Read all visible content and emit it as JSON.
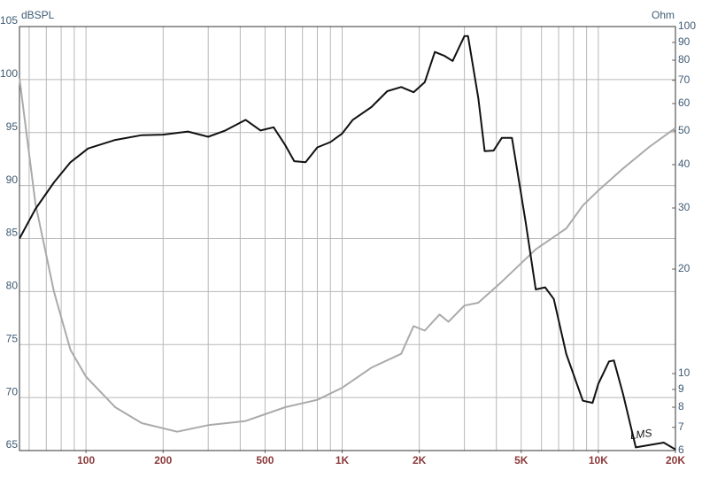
{
  "chart_data": {
    "type": "line",
    "y_label": "dBSPL",
    "y2_label": "Ohm",
    "annotation": "LMS",
    "xscale": "log",
    "y2scale": "log",
    "grid": true,
    "xlim": [
      55,
      20000
    ],
    "ylim": [
      65,
      105
    ],
    "y2lim": [
      6,
      100
    ],
    "xticks": [
      {
        "value": 100,
        "label": "100"
      },
      {
        "value": 200,
        "label": "200"
      },
      {
        "value": 500,
        "label": "500"
      },
      {
        "value": 1000,
        "label": "1K"
      },
      {
        "value": 2000,
        "label": "2K"
      },
      {
        "value": 5000,
        "label": "5K"
      },
      {
        "value": 10000,
        "label": "10K"
      },
      {
        "value": 20000,
        "label": "20K"
      }
    ],
    "xgrid": [
      60,
      70,
      80,
      90,
      100,
      200,
      300,
      400,
      500,
      600,
      700,
      800,
      900,
      1000,
      2000,
      3000,
      4000,
      5000,
      6000,
      7000,
      8000,
      9000,
      10000,
      20000
    ],
    "yticks": [
      65,
      70,
      75,
      80,
      85,
      90,
      95,
      100,
      105
    ],
    "y2ticks": [
      6,
      7,
      8,
      9,
      10,
      20,
      30,
      40,
      50,
      60,
      70,
      80,
      90,
      100
    ],
    "series": [
      {
        "color": "#111111",
        "axis": "y",
        "x": [
          55,
          63.5,
          75,
          87,
          102,
          130,
          165,
          200,
          250,
          300,
          350,
          420,
          480,
          540,
          600,
          650,
          720,
          800,
          900,
          1000,
          1100,
          1300,
          1500,
          1700,
          1900,
          2100,
          2300,
          2500,
          2700,
          3000,
          3100,
          3400,
          3600,
          3900,
          4200,
          4600,
          5200,
          5700,
          6200,
          6700,
          7500,
          8700,
          9500,
          10000,
          11000,
          11500,
          12500,
          14000,
          18000,
          20000
        ],
        "values": [
          85.0,
          87.8,
          90.3,
          92.2,
          93.5,
          94.3,
          94.75,
          94.8,
          95.1,
          94.6,
          95.2,
          96.2,
          95.2,
          95.5,
          93.8,
          92.3,
          92.2,
          93.6,
          94.1,
          94.9,
          96.2,
          97.4,
          98.9,
          99.3,
          98.8,
          99.75,
          102.6,
          102.25,
          101.75,
          104.1,
          104.1,
          98.25,
          93.25,
          93.3,
          94.5,
          94.5,
          86.6,
          80.2,
          80.4,
          79.3,
          74.1,
          69.7,
          69.5,
          71.3,
          73.4,
          73.5,
          70.3,
          65.3,
          65.75,
          65.1
        ]
      },
      {
        "color": "#aaaaaa",
        "axis": "y2",
        "x": [
          55,
          63.5,
          75,
          87,
          100,
          130,
          165,
          227,
          300,
          420,
          600,
          800,
          1000,
          1300,
          1700,
          1900,
          2100,
          2400,
          2600,
          3000,
          3400,
          4200,
          5700,
          7500,
          8700,
          10000,
          12500,
          15800,
          20000
        ],
        "values": [
          71,
          30.8,
          17.2,
          11.7,
          9.8,
          8.0,
          7.2,
          6.8,
          7.1,
          7.3,
          8.0,
          8.4,
          9.1,
          10.4,
          11.4,
          13.7,
          13.3,
          14.8,
          14.1,
          15.7,
          16.0,
          18.4,
          22.8,
          26.2,
          30.5,
          33.7,
          39,
          45,
          51
        ]
      }
    ]
  }
}
